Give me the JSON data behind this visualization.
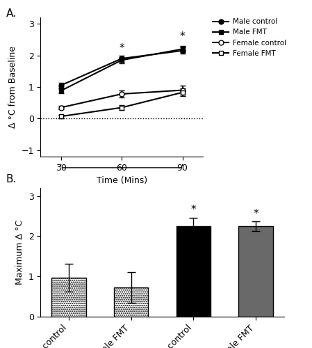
{
  "panel_A": {
    "time": [
      30,
      60,
      90
    ],
    "male_control_mean": [
      1.05,
      1.9,
      2.15
    ],
    "male_control_sem": [
      0.08,
      0.1,
      0.1
    ],
    "male_fmt_mean": [
      0.88,
      1.85,
      2.2
    ],
    "male_fmt_sem": [
      0.07,
      0.1,
      0.1
    ],
    "female_control_mean": [
      0.35,
      0.78,
      0.9
    ],
    "female_control_sem": [
      0.06,
      0.1,
      0.15
    ],
    "female_fmt_mean": [
      0.07,
      0.35,
      0.83
    ],
    "female_fmt_sem": [
      0.05,
      0.08,
      0.12
    ],
    "ylabel": "Δ °C from Baseline",
    "xlabel": "Time (Mins)",
    "ylim": [
      -1.2,
      3.2
    ],
    "yticks": [
      -1,
      0,
      1,
      2,
      3
    ],
    "xticks": [
      30,
      60,
      90
    ]
  },
  "panel_B": {
    "categories": [
      "Female control",
      "Female FMT",
      "Male control",
      "Male FMT"
    ],
    "means": [
      0.97,
      0.72,
      2.25,
      2.25
    ],
    "sems": [
      0.35,
      0.38,
      0.2,
      0.12
    ],
    "bar_facecolors": [
      "white",
      "white",
      "#000000",
      "#696969"
    ],
    "ylabel": "Maximum Δ °C",
    "ylim": [
      0,
      3.2
    ],
    "yticks": [
      0,
      1,
      2,
      3
    ]
  },
  "label_A": "A.",
  "label_B": "B."
}
